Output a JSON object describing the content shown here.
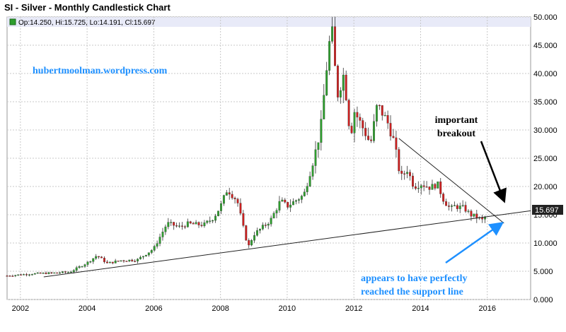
{
  "chart_data": {
    "type": "candlestick",
    "title": "SI - Silver - Monthly Candlestick Chart",
    "ohlc_label": "Op:14.250, Hi:15.725, Lo:14.191, Cl:15.697",
    "last_value_label": "15.697",
    "watermark": "hubertmoolman.wordpress.com",
    "annotations": [
      {
        "id": "breakout",
        "lines": [
          "important",
          "breakout"
        ],
        "color": "#000000"
      },
      {
        "id": "support",
        "lines": [
          "appears to have perfectly",
          "reached the support line"
        ],
        "color": "#1e90ff"
      }
    ],
    "x_ticks": [
      "2002",
      "2004",
      "2006",
      "2008",
      "2010",
      "2012",
      "2014",
      "2016"
    ],
    "y_ticks": [
      "0.000",
      "5.000",
      "10.000",
      "15.000",
      "20.000",
      "25.000",
      "30.000",
      "35.000",
      "40.000",
      "45.000",
      "50.000"
    ],
    "ylim": [
      0,
      50
    ],
    "xlim": [
      2001.6,
      2017.3
    ],
    "grid": true,
    "colors": {
      "up": "#2e9e2e",
      "down": "#cc1f1f",
      "grid": "#c8c8c8",
      "header": "#e8eaf8",
      "support_arrow": "#1e90ff"
    },
    "closes": [
      [
        2001.6,
        4.2
      ],
      [
        2002.0,
        4.4
      ],
      [
        2002.5,
        4.6
      ],
      [
        2003.0,
        4.7
      ],
      [
        2003.5,
        4.9
      ],
      [
        2004.0,
        6.5
      ],
      [
        2004.3,
        7.8
      ],
      [
        2004.6,
        6.4
      ],
      [
        2005.0,
        6.9
      ],
      [
        2005.5,
        7.0
      ],
      [
        2006.0,
        9.0
      ],
      [
        2006.4,
        13.5
      ],
      [
        2006.8,
        12.8
      ],
      [
        2007.0,
        13.4
      ],
      [
        2007.5,
        13.2
      ],
      [
        2007.8,
        14.5
      ],
      [
        2008.0,
        16.5
      ],
      [
        2008.2,
        19.5
      ],
      [
        2008.5,
        17.5
      ],
      [
        2008.75,
        11.0
      ],
      [
        2008.85,
        9.5
      ],
      [
        2009.0,
        11.5
      ],
      [
        2009.5,
        14.0
      ],
      [
        2009.8,
        17.5
      ],
      [
        2010.0,
        16.5
      ],
      [
        2010.5,
        18.5
      ],
      [
        2010.8,
        25.0
      ],
      [
        2011.0,
        30.0
      ],
      [
        2011.2,
        42.0
      ],
      [
        2011.33,
        48.5
      ],
      [
        2011.5,
        36.0
      ],
      [
        2011.7,
        40.0
      ],
      [
        2011.9,
        28.5
      ],
      [
        2012.0,
        33.5
      ],
      [
        2012.3,
        30.0
      ],
      [
        2012.5,
        27.5
      ],
      [
        2012.7,
        34.5
      ],
      [
        2013.0,
        31.5
      ],
      [
        2013.2,
        28.0
      ],
      [
        2013.4,
        21.5
      ],
      [
        2013.6,
        23.0
      ],
      [
        2013.8,
        20.0
      ],
      [
        2014.0,
        20.5
      ],
      [
        2014.3,
        19.8
      ],
      [
        2014.5,
        20.5
      ],
      [
        2014.7,
        17.5
      ],
      [
        2014.9,
        16.0
      ],
      [
        2015.0,
        16.5
      ],
      [
        2015.3,
        16.2
      ],
      [
        2015.5,
        15.0
      ],
      [
        2015.7,
        14.5
      ],
      [
        2015.9,
        13.9
      ],
      [
        2016.0,
        15.697
      ]
    ],
    "support_line": {
      "from": [
        2002.7,
        4.0
      ],
      "to": [
        2017.3,
        15.7
      ]
    },
    "resistance_line": {
      "from": [
        2013.35,
        28.5
      ],
      "to": [
        2016.5,
        13.5
      ]
    }
  }
}
